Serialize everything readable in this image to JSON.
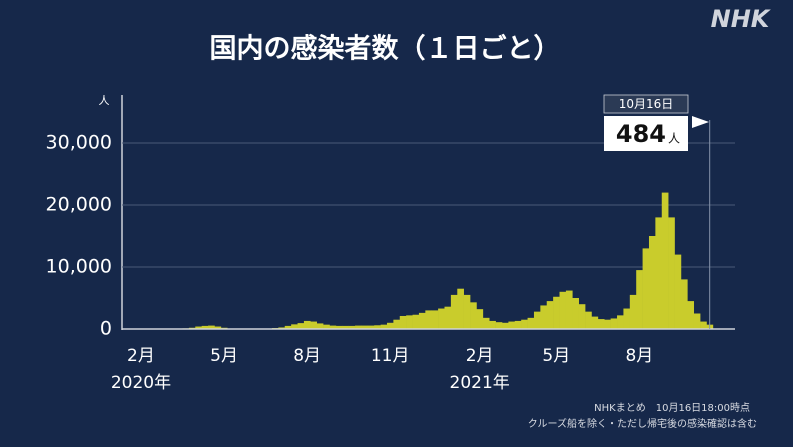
{
  "chart_data": {
    "type": "bar",
    "title": "国内の感染者数（１日ごと）",
    "logo": "NHK",
    "y_unit": "人",
    "categories": [
      null,
      null,
      "2月",
      null,
      null,
      null,
      null,
      null,
      null,
      null,
      null,
      null,
      null,
      null,
      null,
      "5月",
      null,
      null,
      null,
      null,
      null,
      null,
      null,
      null,
      null,
      null,
      null,
      null,
      "8月",
      null,
      null,
      null,
      null,
      null,
      null,
      null,
      null,
      null,
      null,
      null,
      null,
      "11月",
      null,
      null,
      null,
      null,
      null,
      null,
      null,
      null,
      null,
      null,
      null,
      null,
      null,
      "2月",
      null,
      null,
      null,
      null,
      null,
      null,
      null,
      null,
      null,
      null,
      null,
      "5月",
      null,
      null,
      null,
      null,
      null,
      null,
      null,
      null,
      null,
      null,
      null,
      null,
      "8月",
      null,
      null,
      null,
      null,
      null,
      null,
      null,
      null,
      null,
      null,
      null
    ],
    "x_sublabels": [
      "2020年",
      "2021年"
    ],
    "values": [
      0,
      0,
      5,
      10,
      10,
      15,
      30,
      40,
      50,
      100,
      200,
      400,
      500,
      550,
      400,
      200,
      80,
      40,
      30,
      40,
      40,
      50,
      80,
      150,
      250,
      500,
      750,
      950,
      1300,
      1200,
      900,
      700,
      550,
      500,
      500,
      500,
      550,
      550,
      550,
      600,
      700,
      1000,
      1500,
      2100,
      2200,
      2300,
      2600,
      3000,
      3000,
      3300,
      3600,
      5500,
      6500,
      5500,
      4300,
      3200,
      1800,
      1300,
      1100,
      1000,
      1200,
      1300,
      1500,
      1800,
      2800,
      3800,
      4500,
      5200,
      6000,
      6200,
      5000,
      4000,
      2800,
      2000,
      1600,
      1500,
      1700,
      2200,
      3300,
      5500,
      9500,
      13000,
      15000,
      18000,
      22000,
      18000,
      12000,
      8000,
      4500,
      2500,
      1200,
      700
    ],
    "color": "#c9cc2c",
    "ylim": [
      0,
      37000
    ],
    "yticks": [
      0,
      {
        "value": 10000,
        "label": "10,000"
      },
      {
        "value": 20000,
        "label": "20,000"
      },
      {
        "value": 30000,
        "label": "30,000"
      }
    ],
    "grid": true,
    "annotation": {
      "date": "10月16日",
      "value": 484
    },
    "notes": [
      "NHKまとめ　10月16日18:00時点",
      "クルーズ船を除く・ただし帰宅後の感染確認は含む"
    ]
  }
}
